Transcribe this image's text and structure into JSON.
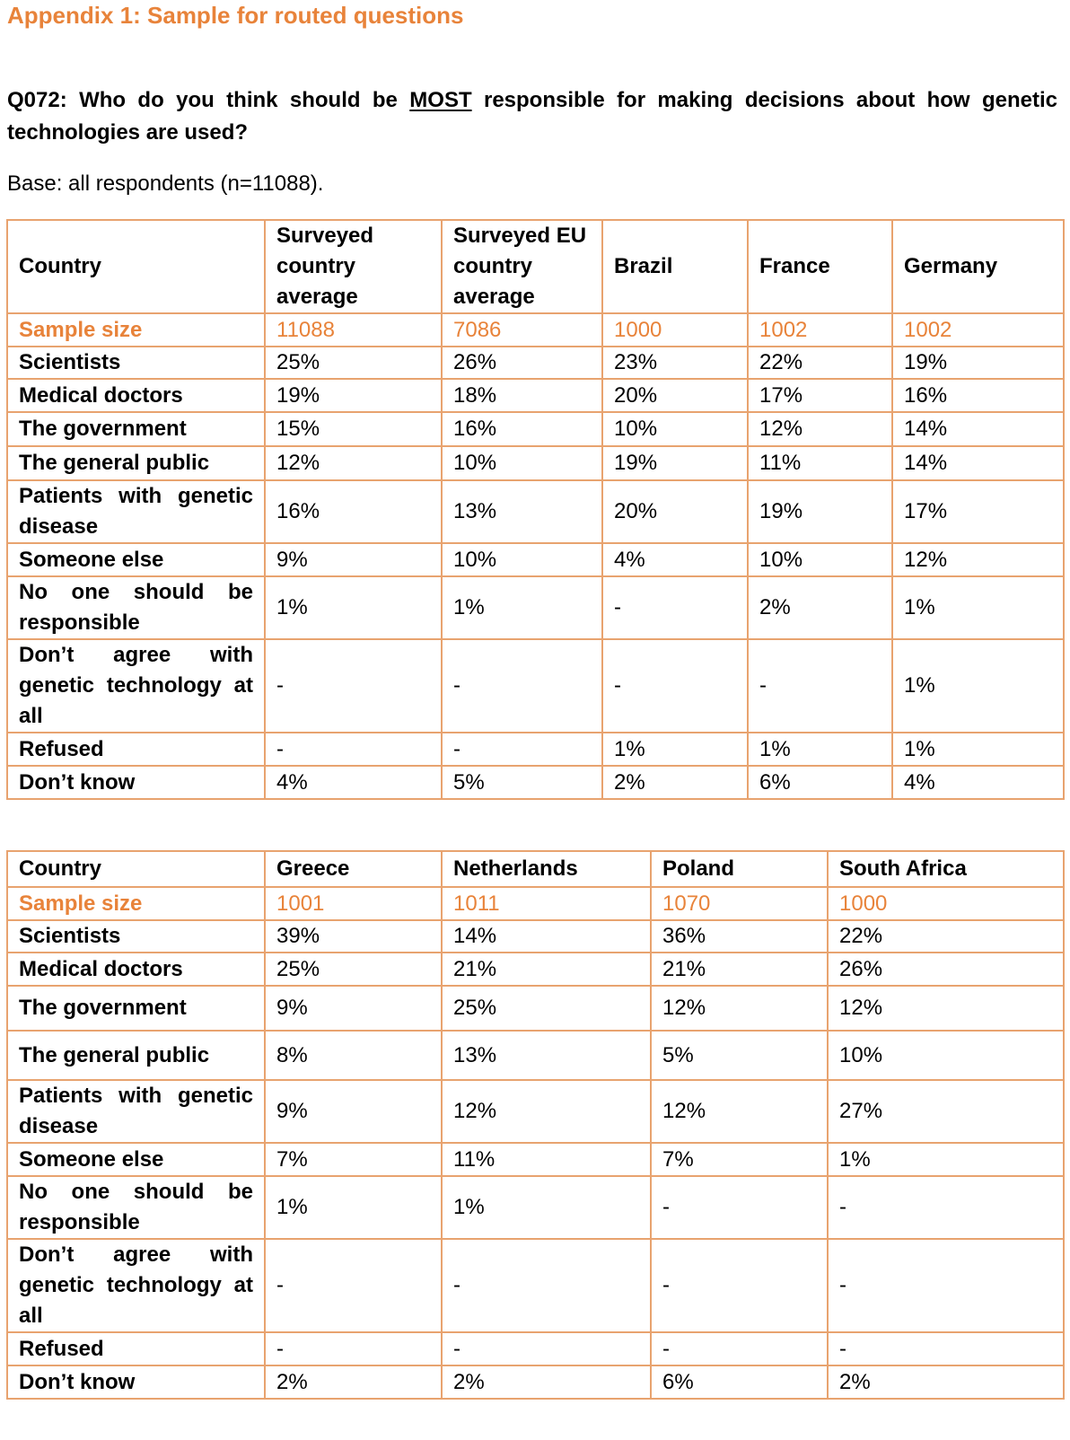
{
  "heading": "Appendix 1: Sample for routed questions",
  "question": {
    "prefix": "Q072: Who do you think should be ",
    "emphasis": "MOST",
    "suffix": " responsible for making decisions about how genetic technologies are used?"
  },
  "base_note": "Base: all respondents (n=11088).",
  "table1": {
    "headers": [
      "Country",
      "Surveyed country average",
      "Surveyed EU country average",
      "Brazil",
      "France",
      "Germany"
    ],
    "rows": [
      {
        "label": "Sample size",
        "values": [
          "11088",
          "7086",
          "1000",
          "1002",
          "1002"
        ]
      },
      {
        "label": "Scientists",
        "values": [
          "25%",
          "26%",
          "23%",
          "22%",
          "19%"
        ]
      },
      {
        "label": "Medical doctors",
        "values": [
          "19%",
          "18%",
          "20%",
          "17%",
          "16%"
        ]
      },
      {
        "label": "The government",
        "values": [
          "15%",
          "16%",
          "10%",
          "12%",
          "14%"
        ]
      },
      {
        "label": "The general public",
        "values": [
          "12%",
          "10%",
          "19%",
          "11%",
          "14%"
        ]
      },
      {
        "label": "Patients with genetic disease",
        "values": [
          "16%",
          "13%",
          "20%",
          "19%",
          "17%"
        ]
      },
      {
        "label": "Someone else",
        "values": [
          "9%",
          "10%",
          "4%",
          "10%",
          "12%"
        ]
      },
      {
        "label": "No one should be responsible",
        "values": [
          "1%",
          "1%",
          "-",
          "2%",
          "1%"
        ]
      },
      {
        "label": "Don’t agree with genetic technology at all",
        "values": [
          "-",
          "-",
          "-",
          "-",
          "1%"
        ]
      },
      {
        "label": "Refused",
        "values": [
          "-",
          "-",
          "1%",
          "1%",
          "1%"
        ]
      },
      {
        "label": "Don’t know",
        "values": [
          "4%",
          "5%",
          "2%",
          "6%",
          "4%"
        ]
      }
    ]
  },
  "table2": {
    "headers": [
      "Country",
      "Greece",
      "Netherlands",
      "Poland",
      "South Africa"
    ],
    "rows": [
      {
        "label": "Sample size",
        "values": [
          "1001",
          "1011",
          "1070",
          "1000"
        ]
      },
      {
        "label": "Scientists",
        "values": [
          "39%",
          "14%",
          "36%",
          "22%"
        ]
      },
      {
        "label": "Medical doctors",
        "values": [
          "25%",
          "21%",
          "21%",
          "26%"
        ]
      },
      {
        "label": "The government",
        "values": [
          "9%",
          "25%",
          "12%",
          "12%"
        ]
      },
      {
        "label": "The general public",
        "values": [
          "8%",
          "13%",
          "5%",
          "10%"
        ]
      },
      {
        "label": "Patients with genetic disease",
        "values": [
          "9%",
          "12%",
          "12%",
          "27%"
        ]
      },
      {
        "label": "Someone else",
        "values": [
          "7%",
          "11%",
          "7%",
          "1%"
        ]
      },
      {
        "label": "No one should be responsible",
        "values": [
          "1%",
          "1%",
          "-",
          "-"
        ]
      },
      {
        "label": "Don’t agree with genetic technology at all",
        "values": [
          "-",
          "-",
          "-",
          "-"
        ]
      },
      {
        "label": "Refused",
        "values": [
          "-",
          "-",
          "-",
          "-"
        ]
      },
      {
        "label": "Don’t know",
        "values": [
          "2%",
          "2%",
          "6%",
          "2%"
        ]
      }
    ]
  },
  "colors": {
    "accent": "#E8833A",
    "border": "#E8A36F"
  }
}
